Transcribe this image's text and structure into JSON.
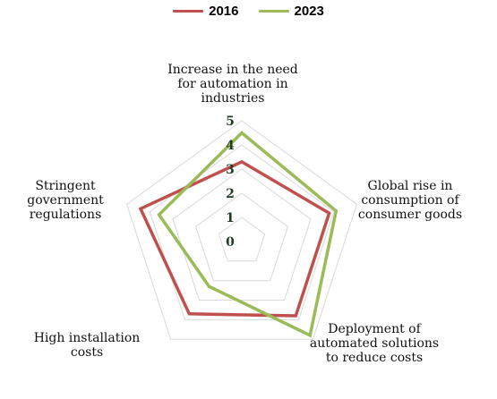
{
  "chart_data": {
    "type": "radar",
    "categories": [
      "Increase in the need for automation in industries",
      "Global rise in consumption of consumer goods",
      "Deployment of automated solutions to reduce costs",
      "High installation costs",
      "Stringent government regulations"
    ],
    "series": [
      {
        "name": "2016",
        "color": "#c0504d",
        "values": [
          3.3,
          3.8,
          3.8,
          3.7,
          4.4
        ]
      },
      {
        "name": "2023",
        "color": "#9bbb59",
        "values": [
          4.5,
          4.1,
          4.8,
          2.3,
          3.6
        ]
      }
    ],
    "rlim": [
      0,
      5
    ],
    "ticks": [
      "0",
      "1",
      "2",
      "3",
      "4",
      "5"
    ],
    "legend": "top-center",
    "grid": true
  },
  "labels": {
    "c0": "Increase in the need\nfor automation in\nindustries",
    "c1": "Global rise in\nconsumption of\nconsumer goods",
    "c2": "Deployment of\nautomated solutions\nto reduce costs",
    "c3": "High installation\ncosts",
    "c4": "Stringent\ngovernment\nregulations"
  }
}
